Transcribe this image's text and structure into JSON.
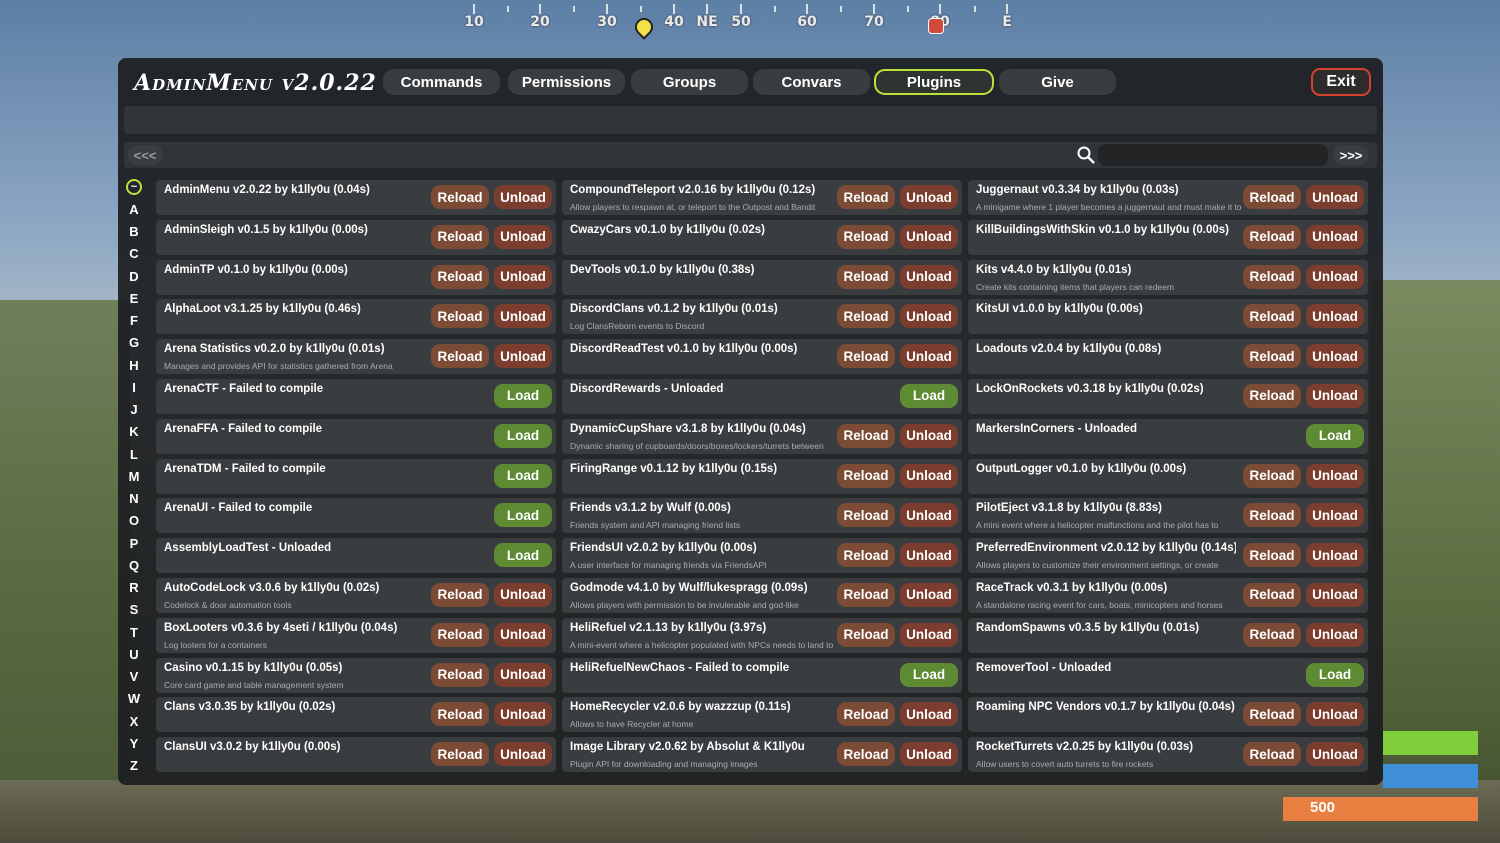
{
  "compass": {
    "labels": [
      "10",
      "20",
      "30",
      "40",
      "NE",
      "50",
      "60",
      "70",
      "80",
      "E"
    ]
  },
  "header": {
    "title": "AdminMenu v2.0.22",
    "tabs": [
      "Commands",
      "Permissions",
      "Groups",
      "Convars",
      "Plugins",
      "Give"
    ],
    "active_tab": "Plugins",
    "exit_label": "Exit"
  },
  "nav": {
    "prev_label": "<<<",
    "next_label": ">>>",
    "search_value": ""
  },
  "letters": [
    "~",
    "A",
    "B",
    "C",
    "D",
    "E",
    "F",
    "G",
    "H",
    "I",
    "J",
    "K",
    "L",
    "M",
    "N",
    "O",
    "P",
    "Q",
    "R",
    "S",
    "T",
    "U",
    "V",
    "W",
    "X",
    "Y",
    "Z"
  ],
  "active_letter": "~",
  "buttons": {
    "reload": "Reload",
    "unload": "Unload",
    "load": "Load"
  },
  "columns": [
    [
      {
        "name": "AdminMenu v2.0.22 by k1lly0u  (0.04s)",
        "desc": "",
        "loaded": true
      },
      {
        "name": "AdminSleigh v0.1.5 by k1lly0u  (0.00s)",
        "desc": "",
        "loaded": true
      },
      {
        "name": "AdminTP v0.1.0 by k1lly0u  (0.00s)",
        "desc": "",
        "loaded": true
      },
      {
        "name": "AlphaLoot v3.1.25 by k1lly0u  (0.46s)",
        "desc": "",
        "loaded": true
      },
      {
        "name": "Arena Statistics v0.2.0 by k1lly0u  (0.01s)",
        "desc": "Manages and provides API for statistics gathered from Arena",
        "loaded": true
      },
      {
        "name": "ArenaCTF - Failed to compile",
        "desc": "",
        "loaded": false
      },
      {
        "name": "ArenaFFA - Failed to compile",
        "desc": "",
        "loaded": false
      },
      {
        "name": "ArenaTDM - Failed to compile",
        "desc": "",
        "loaded": false
      },
      {
        "name": "ArenaUI - Failed to compile",
        "desc": "",
        "loaded": false
      },
      {
        "name": "AssemblyLoadTest - Unloaded",
        "desc": "",
        "loaded": false
      },
      {
        "name": "AutoCodeLock v3.0.6 by k1lly0u  (0.02s)",
        "desc": "Codelock & door automation tools",
        "loaded": true
      },
      {
        "name": "BoxLooters v0.3.6 by 4seti / k1lly0u  (0.04s)",
        "desc": "Log looters for a containers",
        "loaded": true
      },
      {
        "name": "Casino v0.1.15 by k1lly0u  (0.05s)",
        "desc": "Core card game and table management system",
        "loaded": true
      },
      {
        "name": "Clans v3.0.35 by k1lly0u  (0.02s)",
        "desc": "",
        "loaded": true
      },
      {
        "name": "ClansUI v3.0.2 by k1lly0u  (0.00s)",
        "desc": "",
        "loaded": true
      }
    ],
    [
      {
        "name": "CompoundTeleport v2.0.16 by k1lly0u  (0.12s)",
        "desc": "Allow players to respawn at, or teleport to the Outpost and Bandit",
        "loaded": true
      },
      {
        "name": "CwazyCars v0.1.0 by k1lly0u  (0.02s)",
        "desc": "",
        "loaded": true
      },
      {
        "name": "DevTools v0.1.0 by k1lly0u  (0.38s)",
        "desc": "",
        "loaded": true
      },
      {
        "name": "DiscordClans v0.1.2 by k1lly0u  (0.01s)",
        "desc": "Log ClansReborn events to Discord",
        "loaded": true
      },
      {
        "name": "DiscordReadTest v0.1.0 by k1lly0u  (0.00s)",
        "desc": "",
        "loaded": true
      },
      {
        "name": "DiscordRewards - Unloaded",
        "desc": "",
        "loaded": false
      },
      {
        "name": "DynamicCupShare v3.1.8 by k1lly0u  (0.04s)",
        "desc": "Dynamic sharing of cupboards/doors/boxes/lockers/turrets between",
        "loaded": true
      },
      {
        "name": "FiringRange v0.1.12 by k1lly0u  (0.15s)",
        "desc": "",
        "loaded": true
      },
      {
        "name": "Friends v3.1.2 by Wulf  (0.00s)",
        "desc": "Friends system and API managing friend lists",
        "loaded": true
      },
      {
        "name": "FriendsUI v2.0.2 by k1lly0u  (0.00s)",
        "desc": "A user interface for managing friends via FriendsAPI",
        "loaded": true
      },
      {
        "name": "Godmode v4.1.0 by Wulf/lukespragg  (0.09s)",
        "desc": "Allows players with permission to be invulerable and god-like",
        "loaded": true
      },
      {
        "name": "HeliRefuel v2.1.13 by k1lly0u  (3.97s)",
        "desc": "A mini-event where a helicopter populated with NPCs needs to land to",
        "loaded": true
      },
      {
        "name": "HeliRefuelNewChaos - Failed to compile",
        "desc": "",
        "loaded": false
      },
      {
        "name": "HomeRecycler v2.0.6 by wazzzup  (0.11s)",
        "desc": "Allows to have Recycler at home",
        "loaded": true
      },
      {
        "name": "Image Library v2.0.62 by Absolut & K1lly0u",
        "desc": "Plugin API for downloading and managing images",
        "loaded": true
      }
    ],
    [
      {
        "name": "Juggernaut v0.3.34 by k1lly0u  (0.03s)",
        "desc": "A minigame where 1 player becomes a juggernaut and must make it to",
        "loaded": true
      },
      {
        "name": "KillBuildingsWithSkin v0.1.0 by k1lly0u  (0.00s)",
        "desc": "",
        "loaded": true
      },
      {
        "name": "Kits v4.4.0 by k1lly0u  (0.01s)",
        "desc": "Create kits containing items that players can redeem",
        "loaded": true
      },
      {
        "name": "KitsUI v1.0.0 by k1lly0u  (0.00s)",
        "desc": "",
        "loaded": true
      },
      {
        "name": "Loadouts v2.0.4 by k1lly0u  (0.08s)",
        "desc": "",
        "loaded": true
      },
      {
        "name": "LockOnRockets v0.3.18 by k1lly0u  (0.02s)",
        "desc": "",
        "loaded": true
      },
      {
        "name": "MarkersInCorners - Unloaded",
        "desc": "",
        "loaded": false
      },
      {
        "name": "OutputLogger v0.1.0 by k1lly0u  (0.00s)",
        "desc": "",
        "loaded": true
      },
      {
        "name": "PilotEject v3.1.8 by k1lly0u  (8.83s)",
        "desc": "A mini event where a helicopter malfunctions and the pilot has to",
        "loaded": true
      },
      {
        "name": "PreferredEnvironment v2.0.12 by k1lly0u  (0.14s)",
        "desc": "Allows players to customize their environment settings, or create",
        "loaded": true
      },
      {
        "name": "RaceTrack v0.3.1 by k1lly0u  (0.00s)",
        "desc": "A standalone racing event for cars, boats, minicopters and horses",
        "loaded": true
      },
      {
        "name": "RandomSpawns v0.3.5 by k1lly0u  (0.01s)",
        "desc": "",
        "loaded": true
      },
      {
        "name": "RemoverTool - Unloaded",
        "desc": "",
        "loaded": false
      },
      {
        "name": "Roaming NPC Vendors v0.1.7 by k1lly0u  (0.04s)",
        "desc": "",
        "loaded": true
      },
      {
        "name": "RocketTurrets v2.0.25 by k1lly0u  (0.03s)",
        "desc": "Allow users to covert auto turrets to fire rockets",
        "loaded": true
      }
    ]
  ],
  "hud": {
    "water_value": "500"
  },
  "colors": {
    "accent": "#b9e33a",
    "reload": "#7c4b36",
    "unload": "#7b3d2e",
    "load": "#5d8a33",
    "exit_border": "#d4412d"
  }
}
